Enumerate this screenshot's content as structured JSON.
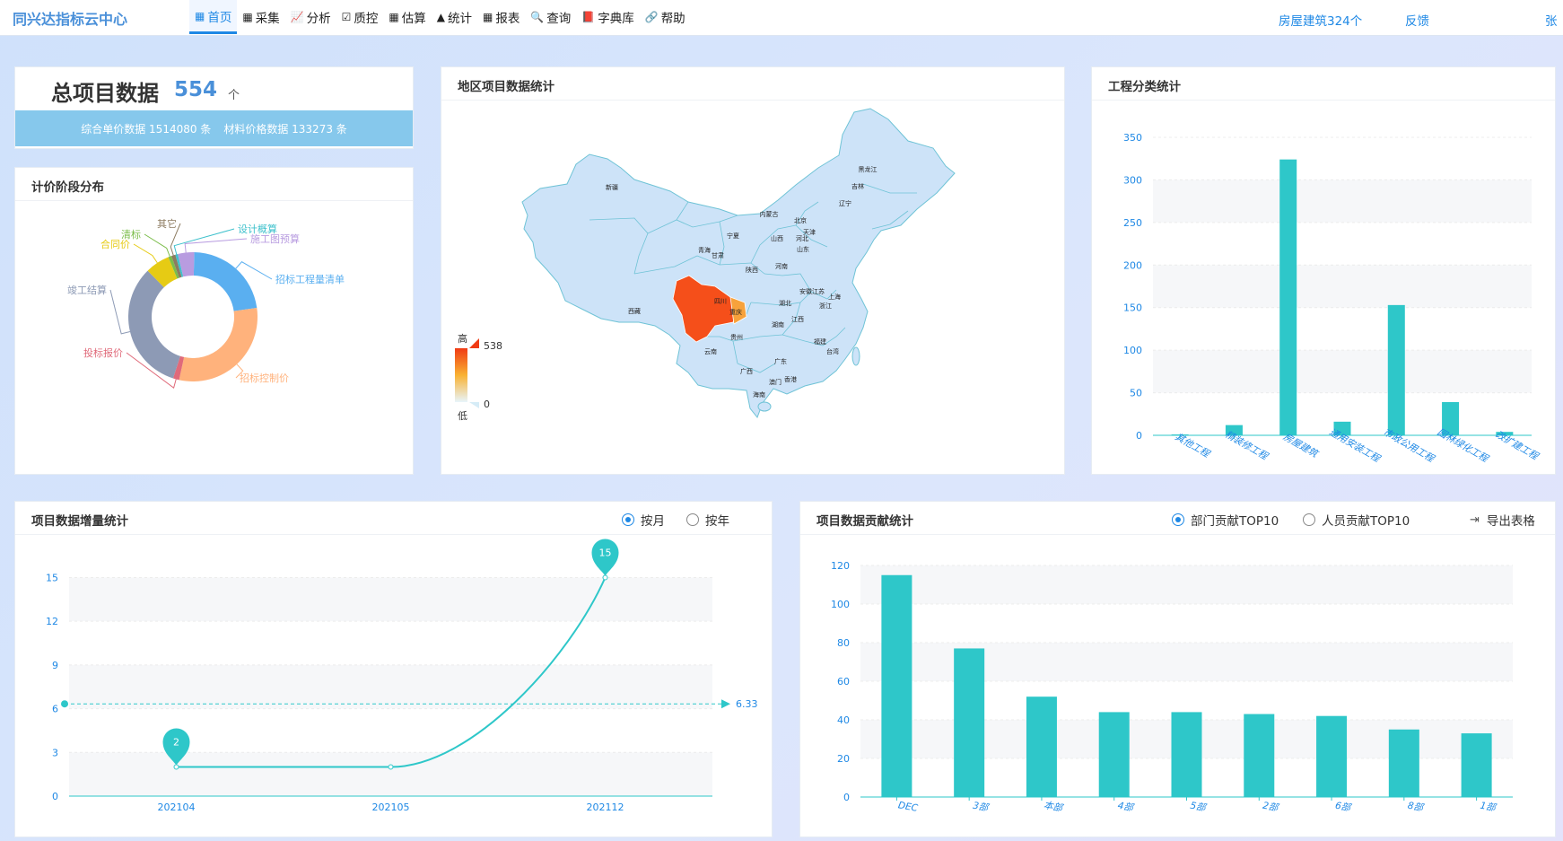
{
  "header": {
    "logo": "同兴达指标云中心",
    "nav": [
      {
        "label": "首页",
        "icon": "▦"
      },
      {
        "label": "采集",
        "icon": "▦"
      },
      {
        "label": "分析",
        "icon": "📈"
      },
      {
        "label": "质控",
        "icon": "☑"
      },
      {
        "label": "估算",
        "icon": "▦"
      },
      {
        "label": "统计",
        "icon": "▲"
      },
      {
        "label": "报表",
        "icon": "▦"
      },
      {
        "label": "查询",
        "icon": "🔍"
      },
      {
        "label": "字典库",
        "icon": "📕"
      },
      {
        "label": "帮助",
        "icon": "🔗"
      }
    ],
    "active_nav": 0,
    "project_link": "房屋建筑324个",
    "feedback": "反馈",
    "user": "张"
  },
  "total": {
    "title": "总项目数据",
    "count": "554",
    "unit": "个",
    "unit_price_label": "综合单价数据",
    "unit_price_value": "1514080 条",
    "material_label": "材料价格数据",
    "material_value": "133273 条"
  },
  "pricing_stage": {
    "title": "计价阶段分布",
    "chart_data": {
      "type": "pie",
      "donut": true,
      "slices": [
        {
          "label": "招标工程量清单",
          "value": 22,
          "color": "#5aaff0"
        },
        {
          "label": "招标控制价",
          "value": 30,
          "color": "#ffb27c"
        },
        {
          "label": "投标报价",
          "value": 1.5,
          "color": "#e06a7a"
        },
        {
          "label": "竣工结算",
          "value": 32,
          "color": "#8d9ab5"
        },
        {
          "label": "合同价",
          "value": 6,
          "color": "#e6cb14"
        },
        {
          "label": "清标",
          "value": 0.8,
          "color": "#7bbd4a"
        },
        {
          "label": "其它",
          "value": 1,
          "color": "#8c7b60"
        },
        {
          "label": "设计概算",
          "value": 0.6,
          "color": "#3ec1cc"
        },
        {
          "label": "施工图预算",
          "value": 4,
          "color": "#b89ce0"
        }
      ]
    }
  },
  "region": {
    "title": "地区项目数据统计",
    "chart_data": {
      "type": "map",
      "highlight": {
        "name": "四川",
        "value": 538
      },
      "scale": {
        "high_label": "高",
        "low_label": "低",
        "max": "538",
        "min": "0"
      },
      "provinces": [
        "新疆",
        "西藏",
        "青海",
        "甘肃",
        "宁夏",
        "内蒙古",
        "陕西",
        "山西",
        "河北",
        "北京",
        "天津",
        "山东",
        "河南",
        "四川",
        "重庆",
        "湖北",
        "安徽",
        "江苏",
        "上海",
        "浙江",
        "江西",
        "湖南",
        "贵州",
        "云南",
        "广西",
        "广东",
        "福建",
        "台湾",
        "香港",
        "澳门",
        "海南",
        "辽宁",
        "吉林",
        "黑龙江"
      ]
    }
  },
  "category": {
    "title": "工程分类统计",
    "chart_data": {
      "type": "bar",
      "categories": [
        "其他工程",
        "精装修工程",
        "房屋建筑",
        "通用安装工程",
        "市政公用工程",
        "园林绿化工程",
        "改扩建工程"
      ],
      "values": [
        1,
        12,
        324,
        16,
        153,
        39,
        4
      ],
      "ylim": [
        0,
        350
      ],
      "yticks": [
        "0",
        "50",
        "100",
        "150",
        "200",
        "250",
        "300",
        "350"
      ],
      "color": "#2ec7c9"
    }
  },
  "growth": {
    "title": "项目数据增量统计",
    "radio_month": "按月",
    "radio_year": "按年",
    "selected": "month",
    "chart_data": {
      "type": "line",
      "x": [
        "202104",
        "202105",
        "202112"
      ],
      "y": [
        2,
        2,
        15
      ],
      "ylim": [
        0,
        17
      ],
      "yticks": [
        "0",
        "3",
        "6",
        "9",
        "12",
        "15"
      ],
      "average": 6.33,
      "average_label": "6.33",
      "max_label": "15",
      "min_label": "2",
      "color": "#2ec7c9"
    }
  },
  "contribution": {
    "title": "项目数据贡献统计",
    "radio_dept": "部门贡献TOP10",
    "radio_person": "人员贡献TOP10",
    "selected": "dept",
    "export_label": "导出表格",
    "chart_data": {
      "type": "bar",
      "categories": [
        "DEC",
        "3部",
        "本部",
        "4部",
        "5部",
        "2部",
        "6部",
        "8部",
        "1部"
      ],
      "values": [
        115,
        77,
        52,
        44,
        44,
        43,
        42,
        35,
        33
      ],
      "ylim": [
        0,
        120
      ],
      "yticks": [
        "0",
        "20",
        "40",
        "60",
        "80",
        "100",
        "120"
      ],
      "color": "#2ec7c9"
    }
  }
}
